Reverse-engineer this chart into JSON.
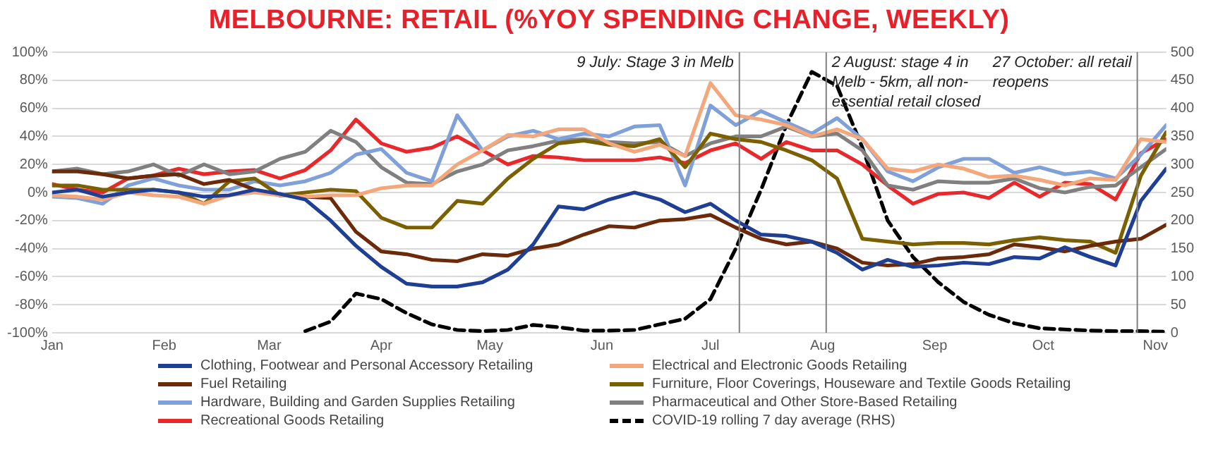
{
  "chart_data": {
    "type": "line",
    "title": "MELBOURNE: RETAIL (%YOY SPENDING CHANGE, WEEKLY)",
    "x": [
      "--01-01",
      "--01-08",
      "--01-15",
      "--01-22",
      "--01-29",
      "--02-05",
      "--02-12",
      "--02-19",
      "--02-26",
      "--03-04",
      "--03-11",
      "--03-18",
      "--03-25",
      "--04-01",
      "--04-08",
      "--04-15",
      "--04-22",
      "--04-29",
      "--05-06",
      "--05-13",
      "--05-20",
      "--05-27",
      "--06-03",
      "--06-10",
      "--06-17",
      "--06-24",
      "--07-01",
      "--07-08",
      "--07-15",
      "--07-22",
      "--07-29",
      "--08-05",
      "--08-12",
      "--08-19",
      "--08-26",
      "--09-02",
      "--09-09",
      "--09-16",
      "--09-23",
      "--09-30",
      "--10-07",
      "--10-14",
      "--10-21",
      "--10-28",
      "--11-04"
    ],
    "xlim": [
      "--01-01",
      "--11-04"
    ],
    "xticks": [
      {
        "value": "--01-01",
        "label": "Jan"
      },
      {
        "value": "--02-01",
        "label": "Feb"
      },
      {
        "value": "--03-01",
        "label": "Mar"
      },
      {
        "value": "--04-01",
        "label": "Apr"
      },
      {
        "value": "--05-01",
        "label": "May"
      },
      {
        "value": "--06-01",
        "label": "Jun"
      },
      {
        "value": "--07-01",
        "label": "Jul"
      },
      {
        "value": "--08-01",
        "label": "Aug"
      },
      {
        "value": "--09-01",
        "label": "Sep"
      },
      {
        "value": "--10-01",
        "label": "Oct"
      },
      {
        "value": "--11-01",
        "label": "Nov"
      }
    ],
    "ylim": [
      -100,
      100
    ],
    "yticks": [
      {
        "value": -100,
        "label": "-100%"
      },
      {
        "value": -80,
        "label": "-80%"
      },
      {
        "value": -60,
        "label": "-60%"
      },
      {
        "value": -40,
        "label": "-40%"
      },
      {
        "value": -20,
        "label": "-20%"
      },
      {
        "value": 0,
        "label": "0%"
      },
      {
        "value": 20,
        "label": "20%"
      },
      {
        "value": 40,
        "label": "40%"
      },
      {
        "value": 60,
        "label": "60%"
      },
      {
        "value": 80,
        "label": "80%"
      },
      {
        "value": 100,
        "label": "100%"
      }
    ],
    "y2lim": [
      0,
      500
    ],
    "y2ticks": [
      0,
      50,
      100,
      150,
      200,
      250,
      300,
      350,
      400,
      450,
      500
    ],
    "grid": "y",
    "legend": "bottom",
    "marker": "none",
    "series": [
      {
        "name": "Clothing, Footwear and Personal Accessory Retailing",
        "color": "#1f3f94",
        "values": [
          0,
          2,
          -3,
          0,
          2,
          0,
          -3,
          -2,
          2,
          -1,
          -5,
          -20,
          -38,
          -53,
          -65,
          -67,
          -67,
          -64,
          -55,
          -37,
          -10,
          -12,
          -5,
          0,
          -5,
          -14,
          -8,
          -20,
          -30,
          -31,
          -35,
          -43,
          -55,
          -48,
          -53,
          -52,
          -50,
          -51,
          -46,
          -47,
          -39,
          -46,
          -52,
          -6,
          17
        ]
      },
      {
        "name": "Electrical and Electronic Goods Retailing",
        "color": "#f4a77a",
        "values": [
          -2,
          -3,
          -5,
          0,
          -2,
          -3,
          -8,
          -2,
          0,
          -2,
          -3,
          -2,
          -2,
          3,
          5,
          5,
          20,
          30,
          41,
          40,
          45,
          45,
          35,
          29,
          34,
          26,
          78,
          55,
          52,
          48,
          40,
          45,
          38,
          17,
          15,
          20,
          17,
          11,
          12,
          9,
          5,
          10,
          9,
          38,
          36
        ]
      },
      {
        "name": "Fuel Retailing",
        "color": "#6b2a0a",
        "values": [
          15,
          15,
          13,
          10,
          12,
          13,
          6,
          9,
          2,
          -2,
          -3,
          -4,
          -28,
          -42,
          -44,
          -48,
          -49,
          -44,
          -45,
          -40,
          -37,
          -30,
          -24,
          -25,
          -20,
          -19,
          -16,
          -25,
          -33,
          -37,
          -35,
          -40,
          -50,
          -52,
          -51,
          -47,
          -46,
          -44,
          -37,
          -39,
          -42,
          -38,
          -35,
          -33,
          -23
        ]
      },
      {
        "name": "Furniture, Floor Coverings, Houseware and Textile Goods Retailing",
        "color": "#7a6000",
        "values": [
          5,
          5,
          2,
          2,
          2,
          0,
          -8,
          8,
          10,
          -2,
          0,
          2,
          1,
          -18,
          -25,
          -25,
          -6,
          -8,
          10,
          24,
          35,
          37,
          34,
          33,
          38,
          18,
          42,
          38,
          36,
          30,
          23,
          10,
          -33,
          -35,
          -37,
          -36,
          -36,
          -37,
          -34,
          -32,
          -34,
          -35,
          -43,
          12,
          43
        ]
      },
      {
        "name": "Hardware, Building and Garden Supplies Retailing",
        "color": "#7fa0d8",
        "values": [
          -3,
          -4,
          -8,
          5,
          10,
          5,
          2,
          2,
          8,
          5,
          8,
          14,
          27,
          31,
          14,
          8,
          55,
          30,
          40,
          44,
          38,
          42,
          40,
          47,
          48,
          5,
          62,
          48,
          58,
          50,
          42,
          53,
          38,
          15,
          8,
          18,
          24,
          24,
          14,
          18,
          13,
          15,
          10,
          27,
          48
        ]
      },
      {
        "name": "Pharmaceutical and Other Store-Based Retailing",
        "color": "#808080",
        "values": [
          15,
          17,
          13,
          15,
          20,
          12,
          20,
          13,
          15,
          24,
          29,
          44,
          36,
          18,
          7,
          6,
          15,
          20,
          30,
          33,
          37,
          38,
          36,
          35,
          36,
          26,
          35,
          40,
          40,
          47,
          40,
          42,
          30,
          5,
          2,
          8,
          7,
          7,
          10,
          3,
          0,
          4,
          5,
          18,
          31
        ]
      },
      {
        "name": "Recreational Goods Retailing",
        "color": "#e8282a",
        "values": [
          6,
          2,
          0,
          10,
          12,
          17,
          13,
          15,
          16,
          10,
          16,
          30,
          52,
          35,
          29,
          32,
          40,
          30,
          20,
          26,
          25,
          23,
          23,
          23,
          25,
          21,
          30,
          35,
          24,
          36,
          30,
          30,
          20,
          5,
          -8,
          -1,
          0,
          -4,
          7,
          -3,
          7,
          6,
          -5,
          28,
          38
        ]
      },
      {
        "name": "COVID-19 rolling 7 day average (RHS)",
        "color": "#000000",
        "axis": "y2",
        "line_style": "dashed",
        "values": [
          null,
          null,
          null,
          null,
          null,
          null,
          null,
          null,
          null,
          null,
          3,
          20,
          70,
          60,
          35,
          15,
          5,
          3,
          5,
          14,
          10,
          4,
          4,
          5,
          15,
          25,
          60,
          150,
          255,
          370,
          465,
          440,
          330,
          200,
          135,
          90,
          55,
          32,
          17,
          8,
          6,
          4,
          3,
          3,
          2
        ]
      }
    ],
    "ref_lines": [
      {
        "axis": "x",
        "value": "--07-09",
        "label": "9 July: Stage 3 in Melb",
        "color": "#808080"
      },
      {
        "axis": "x",
        "value": "--08-02",
        "label": "2 August: stage 4 in Melb - 5km, all non-essential retail closed",
        "color": "#808080"
      },
      {
        "axis": "x",
        "value": "--10-27",
        "label": "27 October: all retail reopens",
        "color": "#808080"
      }
    ]
  }
}
